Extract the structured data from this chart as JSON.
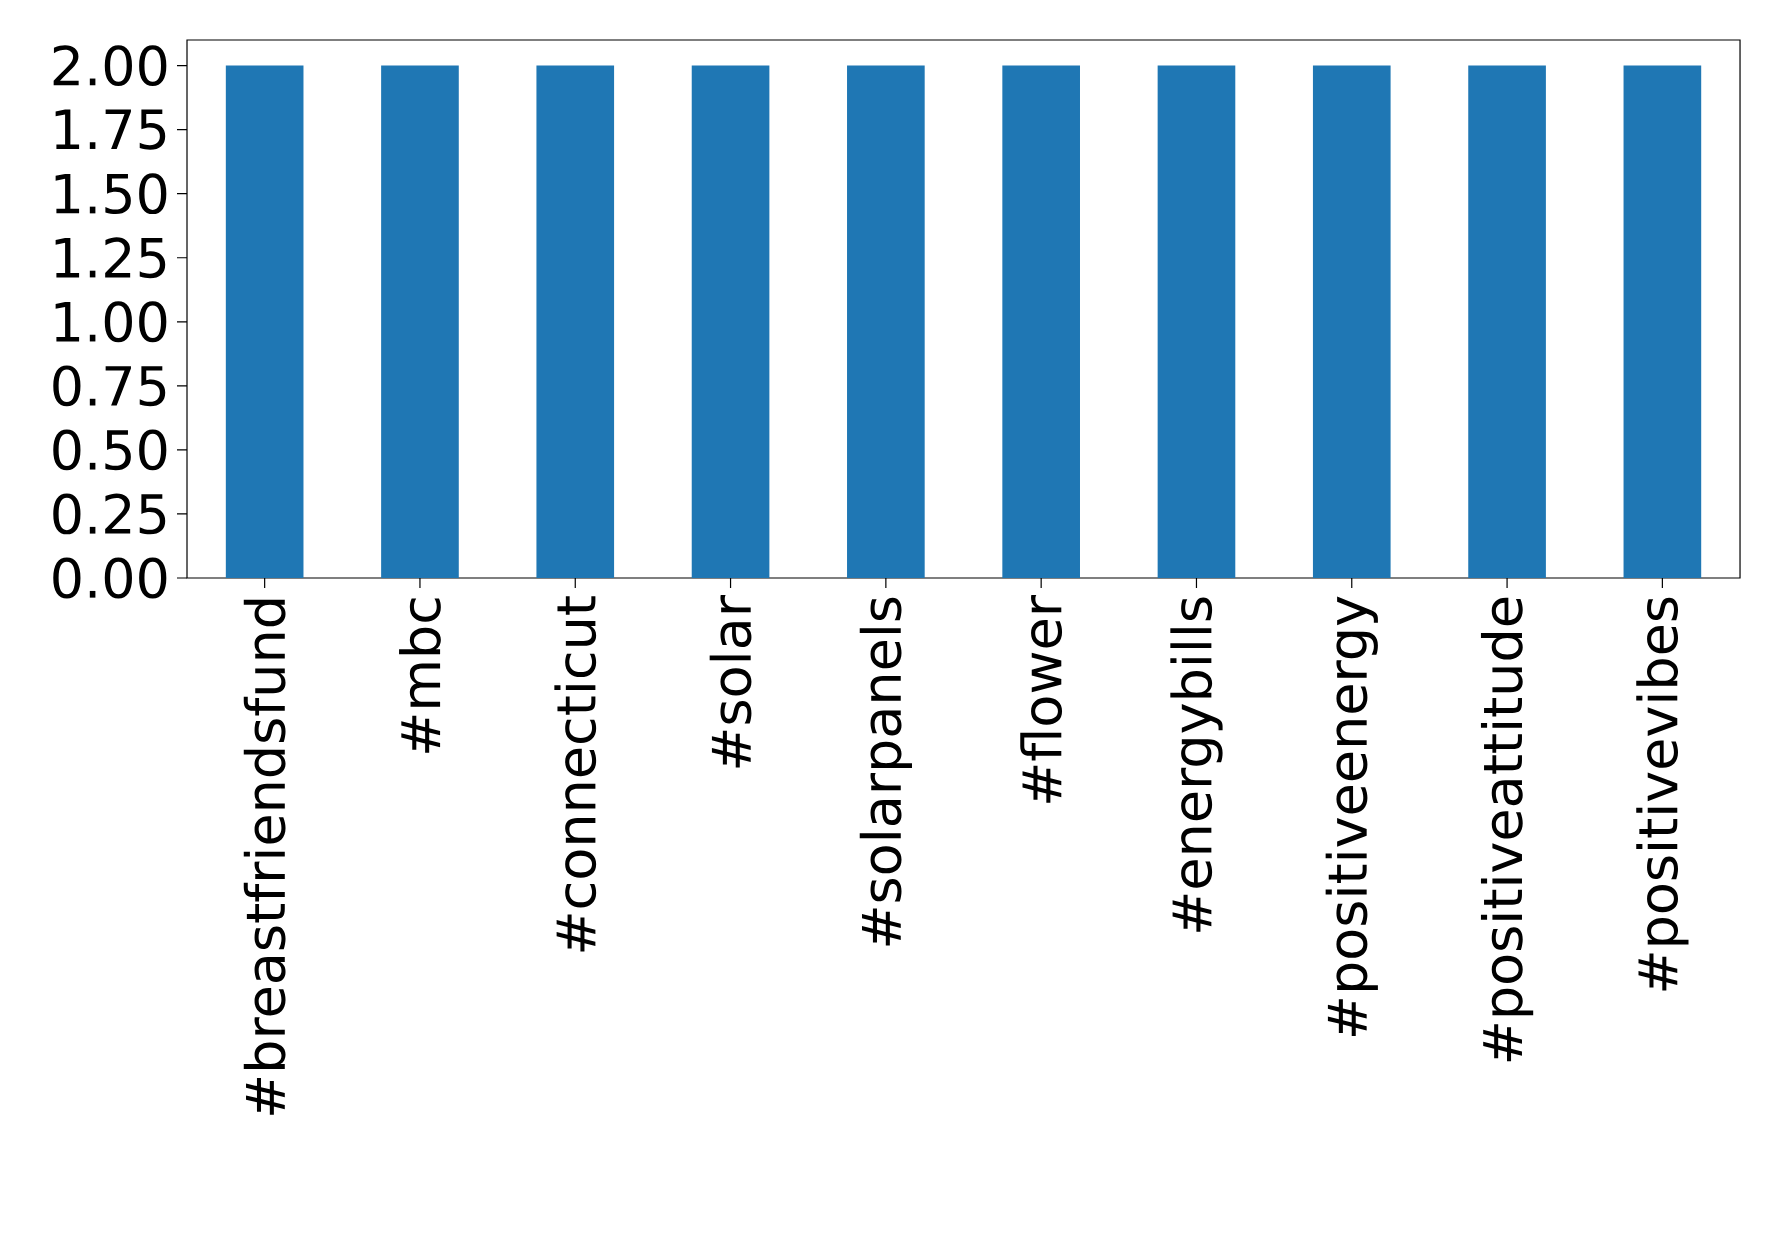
{
  "chart_data": {
    "type": "bar",
    "categories": [
      "#breastfriendsfund",
      "#mbc",
      "#connecticut",
      "#solar",
      "#solarpanels",
      "#flower",
      "#energybills",
      "#positiveenergy",
      "#positiveattitude",
      "#positivevibes"
    ],
    "values": [
      2,
      2,
      2,
      2,
      2,
      2,
      2,
      2,
      2,
      2
    ],
    "color": "#1f77b4",
    "ylim": [
      0,
      2.1
    ],
    "yticks": [
      {
        "value": 0,
        "label": "0.00"
      },
      {
        "value": 0.25,
        "label": "0.25"
      },
      {
        "value": 0.5,
        "label": "0.50"
      },
      {
        "value": 0.75,
        "label": "0.75"
      },
      {
        "value": 1,
        "label": "1.00"
      },
      {
        "value": 1.25,
        "label": "1.25"
      },
      {
        "value": 1.5,
        "label": "1.50"
      },
      {
        "value": 1.75,
        "label": "1.75"
      },
      {
        "value": 2,
        "label": "2.00"
      }
    ]
  }
}
